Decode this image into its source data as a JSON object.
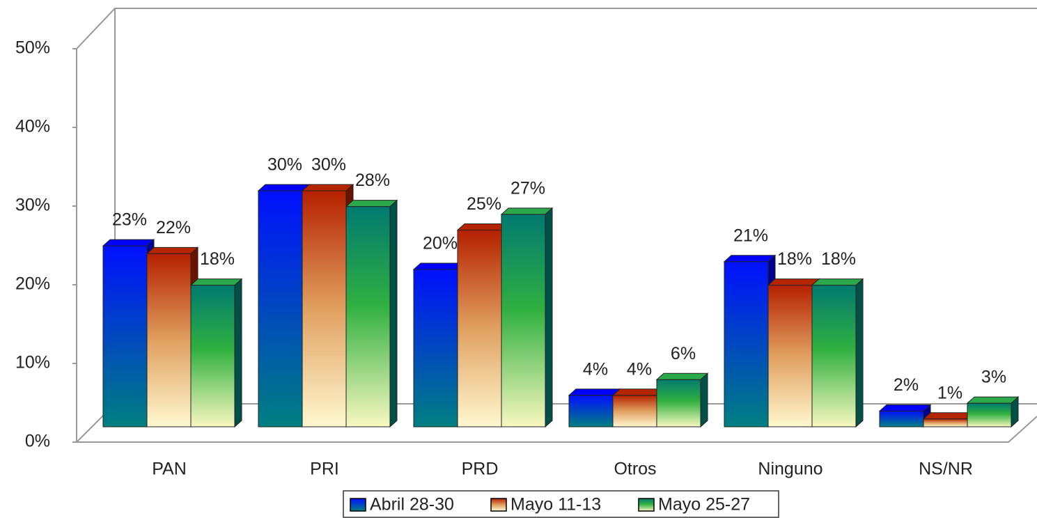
{
  "chart_data": {
    "type": "bar3d",
    "categories": [
      "PAN",
      "PRI",
      "PRD",
      "Otros",
      "Ninguno",
      "NS/NR"
    ],
    "series": [
      {
        "name": "Abril 28-30",
        "color": "#0000ff",
        "values": [
          23,
          30,
          20,
          4,
          21,
          2
        ],
        "value_labels": [
          "23%",
          "30%",
          "20%",
          "4%",
          "21%",
          "2%"
        ]
      },
      {
        "name": "Mayo 11-13",
        "color": "#b52500",
        "values": [
          22,
          30,
          25,
          4,
          18,
          1
        ],
        "value_labels": [
          "22%",
          "30%",
          "25%",
          "4%",
          "18%",
          "1%"
        ]
      },
      {
        "name": "Mayo 25-27",
        "color": "#2aa84a",
        "values": [
          18,
          28,
          27,
          6,
          18,
          3
        ],
        "value_labels": [
          "18%",
          "28%",
          "27%",
          "6%",
          "18%",
          "3%"
        ]
      }
    ],
    "ylim": [
      0,
      50
    ],
    "yticks": [
      {
        "value": 0,
        "label": "0%"
      },
      {
        "value": 10,
        "label": "10%"
      },
      {
        "value": 20,
        "label": "20%"
      },
      {
        "value": 30,
        "label": "30%"
      },
      {
        "value": 40,
        "label": "40%"
      },
      {
        "value": 50,
        "label": "50%"
      }
    ],
    "legend": "bottom"
  }
}
